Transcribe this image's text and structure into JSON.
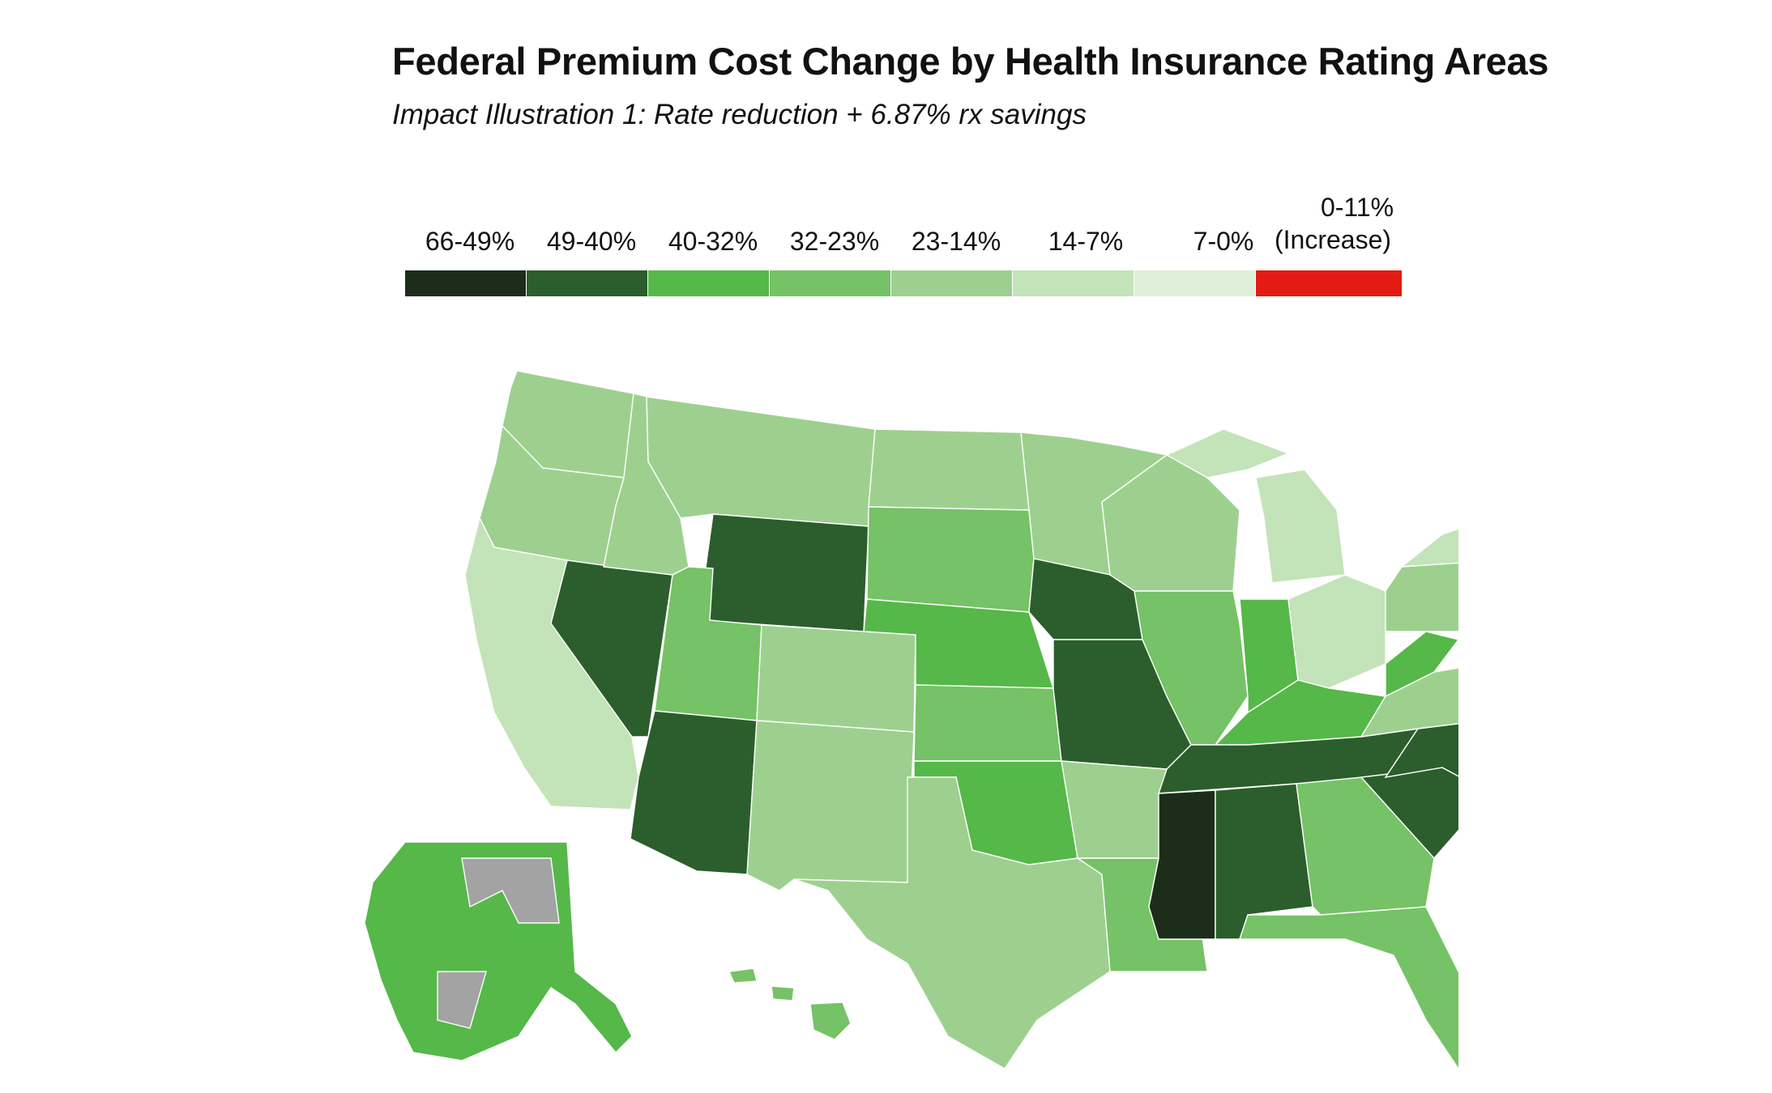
{
  "title": "Federal Premium Cost Change by Health Insurance Rating Areas",
  "subtitle": "Impact Illustration 1: Rate reduction + 6.87% rx savings",
  "legend": {
    "bins": [
      {
        "label": "66-49%",
        "color": "#1c2e1a"
      },
      {
        "label": "49-40%",
        "color": "#2b5e2c"
      },
      {
        "label": "40-32%",
        "color": "#55b848"
      },
      {
        "label": "32-23%",
        "color": "#76c266"
      },
      {
        "label": "23-14%",
        "color": "#9dd08f"
      },
      {
        "label": "14-7%",
        "color": "#c3e3b8"
      },
      {
        "label": "7-0%",
        "color": "#dfefda"
      },
      {
        "label_line1": "0-11%",
        "label_line2": "(Increase)",
        "color": "#e31b12"
      }
    ]
  },
  "map": {
    "no_data_color": "#a3a3a3",
    "regions": [
      {
        "name": "Washington",
        "bin": "23-14%"
      },
      {
        "name": "Oregon",
        "bin": "23-14%"
      },
      {
        "name": "California",
        "bin": "14-7%"
      },
      {
        "name": "Nevada",
        "bin": "49-40%"
      },
      {
        "name": "Idaho",
        "bin": "23-14%"
      },
      {
        "name": "Montana",
        "bin": "23-14%"
      },
      {
        "name": "Wyoming",
        "bin": "49-40%"
      },
      {
        "name": "Utah",
        "bin": "32-23%"
      },
      {
        "name": "Arizona",
        "bin": "49-40%"
      },
      {
        "name": "Colorado",
        "bin": "23-14%"
      },
      {
        "name": "New Mexico",
        "bin": "23-14%"
      },
      {
        "name": "North Dakota",
        "bin": "23-14%"
      },
      {
        "name": "South Dakota",
        "bin": "32-23%"
      },
      {
        "name": "Nebraska",
        "bin": "40-32%"
      },
      {
        "name": "Kansas",
        "bin": "32-23%"
      },
      {
        "name": "Oklahoma",
        "bin": "40-32%"
      },
      {
        "name": "Texas",
        "bin": "23-14%"
      },
      {
        "name": "Minnesota",
        "bin": "23-14%"
      },
      {
        "name": "Iowa",
        "bin": "49-40%"
      },
      {
        "name": "Missouri",
        "bin": "49-40%"
      },
      {
        "name": "Arkansas",
        "bin": "23-14%"
      },
      {
        "name": "Louisiana",
        "bin": "32-23%"
      },
      {
        "name": "Wisconsin",
        "bin": "23-14%"
      },
      {
        "name": "Illinois",
        "bin": "32-23%"
      },
      {
        "name": "Michigan",
        "bin": "14-7%"
      },
      {
        "name": "Indiana",
        "bin": "40-32%"
      },
      {
        "name": "Ohio",
        "bin": "14-7%"
      },
      {
        "name": "Kentucky",
        "bin": "40-32%"
      },
      {
        "name": "Tennessee",
        "bin": "49-40%"
      },
      {
        "name": "Mississippi",
        "bin": "66-49%"
      },
      {
        "name": "Alabama",
        "bin": "49-40%"
      },
      {
        "name": "Georgia",
        "bin": "32-23%"
      },
      {
        "name": "Florida",
        "bin": "32-23%"
      },
      {
        "name": "South Carolina",
        "bin": "49-40%"
      },
      {
        "name": "North Carolina",
        "bin": "49-40%"
      },
      {
        "name": "Virginia",
        "bin": "23-14%"
      },
      {
        "name": "West Virginia",
        "bin": "40-32%"
      },
      {
        "name": "Pennsylvania",
        "bin": "23-14%"
      },
      {
        "name": "New York",
        "bin": "14-7%"
      },
      {
        "name": "New England",
        "bin": "23-14%"
      },
      {
        "name": "Alaska",
        "bin": "40-32%"
      },
      {
        "name": "Hawaii",
        "bin": "32-23%"
      },
      {
        "name": "District of Columbia",
        "bin": "40-32%"
      }
    ]
  }
}
